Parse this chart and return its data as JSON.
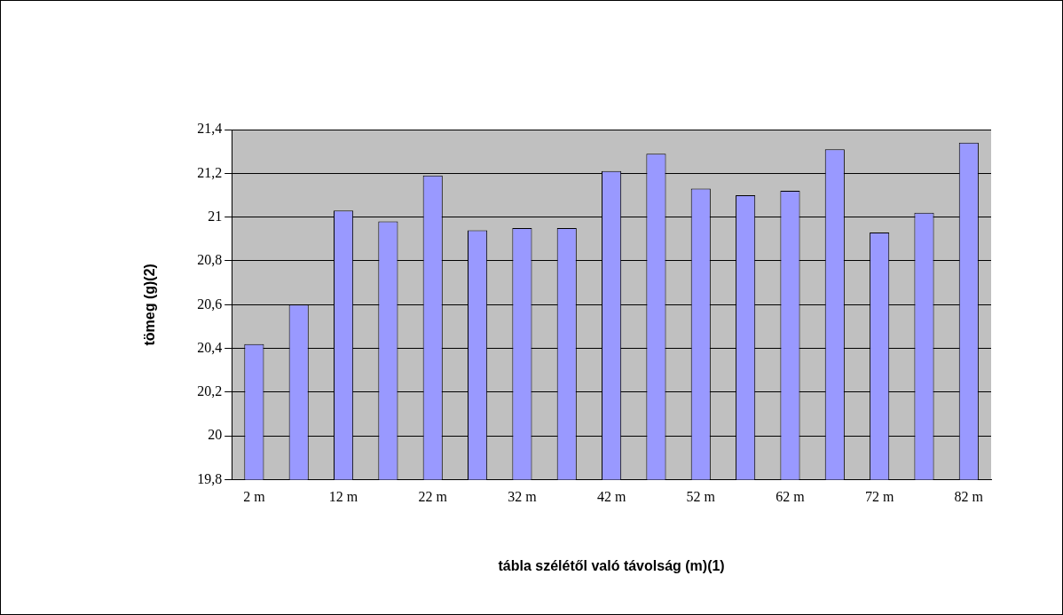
{
  "chart_data": {
    "type": "bar",
    "xlabel": "tábla szélétől való távolság (m)(1)",
    "ylabel": "tömeg (g)(2)",
    "categories": [
      "2 m",
      null,
      "12 m",
      null,
      "22 m",
      null,
      "32 m",
      null,
      "42 m",
      null,
      "52 m",
      null,
      "62 m",
      null,
      "72 m",
      null,
      "82 m"
    ],
    "values": [
      20.42,
      20.6,
      21.03,
      20.98,
      21.19,
      20.94,
      20.95,
      20.95,
      21.21,
      21.29,
      21.13,
      21.1,
      21.12,
      21.31,
      20.93,
      21.02,
      21.34
    ],
    "color": "#9999ff",
    "ylim": [
      19.8,
      21.4
    ],
    "yticks": [
      {
        "value": 19.8,
        "label": "19,8"
      },
      20,
      {
        "value": 20.2,
        "label": "20,2"
      },
      {
        "value": 20.4,
        "label": "20,4"
      },
      {
        "value": 20.6,
        "label": "20,6"
      },
      {
        "value": 20.8,
        "label": "20,8"
      },
      21,
      {
        "value": 21.2,
        "label": "21,2"
      },
      {
        "value": 21.4,
        "label": "21,4"
      }
    ],
    "grid": "y",
    "legend": false
  }
}
